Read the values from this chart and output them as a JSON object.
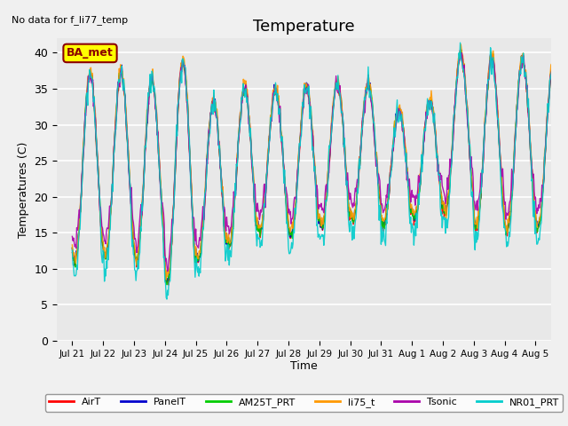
{
  "title": "Temperature",
  "ylabel": "Temperatures (C)",
  "xlabel": "Time",
  "annotation": "No data for f_li77_temp",
  "legend_label": "BA_met",
  "ylim": [
    0,
    42
  ],
  "yticks": [
    0,
    5,
    10,
    15,
    20,
    25,
    30,
    35,
    40
  ],
  "xtick_labels": [
    "Jul 21",
    "Jul 22",
    "Jul 23",
    "Jul 24",
    "Jul 25",
    "Jul 26",
    "Jul 27",
    "Jul 28",
    "Jul 29",
    "Jul 30",
    "Jul 31",
    "Aug 1",
    "Aug 2",
    "Aug 3",
    "Aug 4",
    "Aug 5"
  ],
  "series_colors": {
    "AirT": "#ff0000",
    "PanelT": "#0000cc",
    "AM25T_PRT": "#00cc00",
    "li75_t": "#ff9900",
    "Tsonic": "#aa00aa",
    "NR01_PRT": "#00cccc"
  },
  "series_names": [
    "AirT",
    "PanelT",
    "AM25T_PRT",
    "li75_t",
    "Tsonic",
    "NR01_PRT"
  ],
  "bg_color": "#e8e8e8",
  "grid_color": "#ffffff",
  "title_fontsize": 13,
  "label_fontsize": 9,
  "n_days": 16,
  "points_per_day": 48,
  "day_mins": [
    10.5,
    11.5,
    11.0,
    8.0,
    11.0,
    13.0,
    15.0,
    14.5,
    15.5,
    16.5,
    16.0,
    17.0,
    17.5,
    15.5,
    15.0,
    15.5
  ],
  "day_maxs": [
    37.0,
    37.0,
    36.0,
    38.5,
    33.0,
    35.0,
    34.5,
    35.0,
    35.5,
    35.5,
    32.0,
    33.0,
    39.5,
    39.0,
    39.0,
    38.5
  ]
}
